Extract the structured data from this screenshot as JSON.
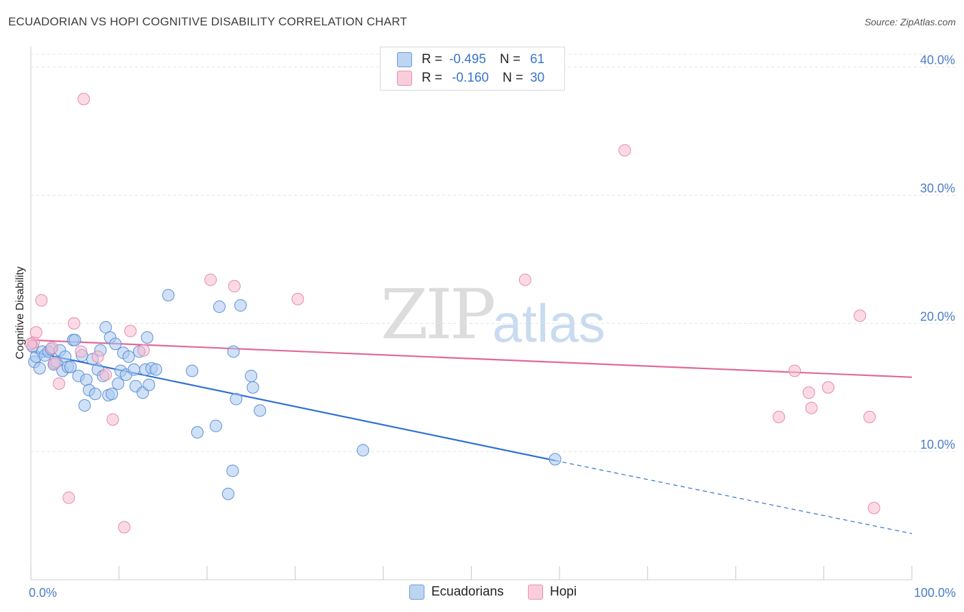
{
  "header": {
    "title": "ECUADORIAN VS HOPI COGNITIVE DISABILITY CORRELATION CHART",
    "source": "Source: ZipAtlas.com"
  },
  "watermark": {
    "part1": "ZIP",
    "part2": "atlas"
  },
  "legend": {
    "rows": [
      {
        "r_label": "R =",
        "r_value": "-0.495",
        "n_label": "N =",
        "n_value": "61",
        "color": "#a9c8f0"
      },
      {
        "r_label": "R =",
        "r_value": "-0.160",
        "n_label": "N =",
        "n_value": "30",
        "color": "#f7bcd0"
      }
    ]
  },
  "bottom_legend": {
    "ecuadorians": "Ecuadorians",
    "hopi": "Hopi"
  },
  "chart_data": {
    "type": "scatter",
    "ylabel": "Cognitive Disability",
    "xlim": [
      0,
      100
    ],
    "ylim": [
      0,
      41
    ],
    "x_ticks": [
      {
        "value": 0,
        "label": "0.0%"
      },
      {
        "value": 100,
        "label": "100.0%"
      }
    ],
    "y_ticks": [
      {
        "value": 10,
        "label": "10.0%"
      },
      {
        "value": 20,
        "label": "20.0%"
      },
      {
        "value": 30,
        "label": "30.0%"
      },
      {
        "value": 40,
        "label": "40.0%"
      }
    ],
    "grid": true,
    "series": [
      {
        "name": "Ecuadorians",
        "color": "#a9c8f0",
        "stroke": "#5b8fd6",
        "line_color": "#2e6fd1",
        "trend": {
          "x0": 0,
          "y0": 17.8,
          "x1": 59.5,
          "y1": 9.3,
          "dash_to_x": 100,
          "dash_to_y": 3.6
        },
        "points": [
          [
            0.2,
            18.2
          ],
          [
            0.4,
            17.0
          ],
          [
            0.6,
            17.4
          ],
          [
            1.0,
            16.5
          ],
          [
            1.3,
            17.8
          ],
          [
            1.6,
            17.5
          ],
          [
            2.0,
            17.8
          ],
          [
            2.3,
            18.0
          ],
          [
            2.6,
            16.8
          ],
          [
            2.9,
            17.0
          ],
          [
            3.3,
            17.9
          ],
          [
            3.6,
            16.3
          ],
          [
            3.9,
            17.4
          ],
          [
            4.2,
            16.6
          ],
          [
            4.5,
            16.6
          ],
          [
            4.8,
            18.7
          ],
          [
            5.0,
            18.7
          ],
          [
            5.4,
            15.9
          ],
          [
            5.8,
            17.5
          ],
          [
            6.1,
            13.6
          ],
          [
            6.3,
            15.6
          ],
          [
            6.6,
            14.8
          ],
          [
            7.0,
            17.2
          ],
          [
            7.3,
            14.5
          ],
          [
            7.6,
            16.4
          ],
          [
            7.9,
            17.9
          ],
          [
            8.2,
            15.9
          ],
          [
            8.5,
            19.7
          ],
          [
            8.8,
            14.4
          ],
          [
            9.0,
            18.9
          ],
          [
            9.2,
            14.5
          ],
          [
            9.6,
            18.4
          ],
          [
            9.9,
            15.3
          ],
          [
            10.2,
            16.3
          ],
          [
            10.5,
            17.7
          ],
          [
            10.8,
            16.0
          ],
          [
            11.1,
            17.4
          ],
          [
            11.7,
            16.4
          ],
          [
            11.9,
            15.1
          ],
          [
            12.3,
            17.8
          ],
          [
            12.7,
            14.6
          ],
          [
            13.2,
            18.9
          ],
          [
            13.4,
            15.2
          ],
          [
            13.0,
            16.4
          ],
          [
            13.7,
            16.5
          ],
          [
            14.2,
            16.4
          ],
          [
            15.6,
            22.2
          ],
          [
            18.3,
            16.3
          ],
          [
            18.9,
            11.5
          ],
          [
            21.0,
            12.0
          ],
          [
            21.4,
            21.3
          ],
          [
            22.4,
            6.7
          ],
          [
            22.9,
            8.5
          ],
          [
            23.0,
            17.8
          ],
          [
            23.3,
            14.1
          ],
          [
            23.8,
            21.4
          ],
          [
            25.0,
            15.9
          ],
          [
            25.2,
            15.0
          ],
          [
            26.0,
            13.2
          ],
          [
            37.7,
            10.1
          ],
          [
            59.5,
            9.4
          ]
        ]
      },
      {
        "name": "Hopi",
        "color": "#f7bcd0",
        "stroke": "#e58aa8",
        "line_color": "#e2679a",
        "trend": {
          "x0": 0,
          "y0": 18.7,
          "x1": 100,
          "y1": 15.8
        },
        "points": [
          [
            0.3,
            18.5
          ],
          [
            0.6,
            19.3
          ],
          [
            1.2,
            21.8
          ],
          [
            2.4,
            18.1
          ],
          [
            2.7,
            16.9
          ],
          [
            3.2,
            15.3
          ],
          [
            4.3,
            6.4
          ],
          [
            4.9,
            20.0
          ],
          [
            5.7,
            17.8
          ],
          [
            6.0,
            37.5
          ],
          [
            7.6,
            17.4
          ],
          [
            8.5,
            16.0
          ],
          [
            9.3,
            12.5
          ],
          [
            10.6,
            4.1
          ],
          [
            11.3,
            19.4
          ],
          [
            12.8,
            17.9
          ],
          [
            20.4,
            23.4
          ],
          [
            23.1,
            22.9
          ],
          [
            30.3,
            21.9
          ],
          [
            56.1,
            23.4
          ],
          [
            67.4,
            33.5
          ],
          [
            84.9,
            12.7
          ],
          [
            86.7,
            16.3
          ],
          [
            88.3,
            14.6
          ],
          [
            88.6,
            13.4
          ],
          [
            90.5,
            15.0
          ],
          [
            94.1,
            20.6
          ],
          [
            95.2,
            12.7
          ],
          [
            95.7,
            5.6
          ],
          [
            0.0,
            18.4
          ]
        ]
      }
    ]
  }
}
